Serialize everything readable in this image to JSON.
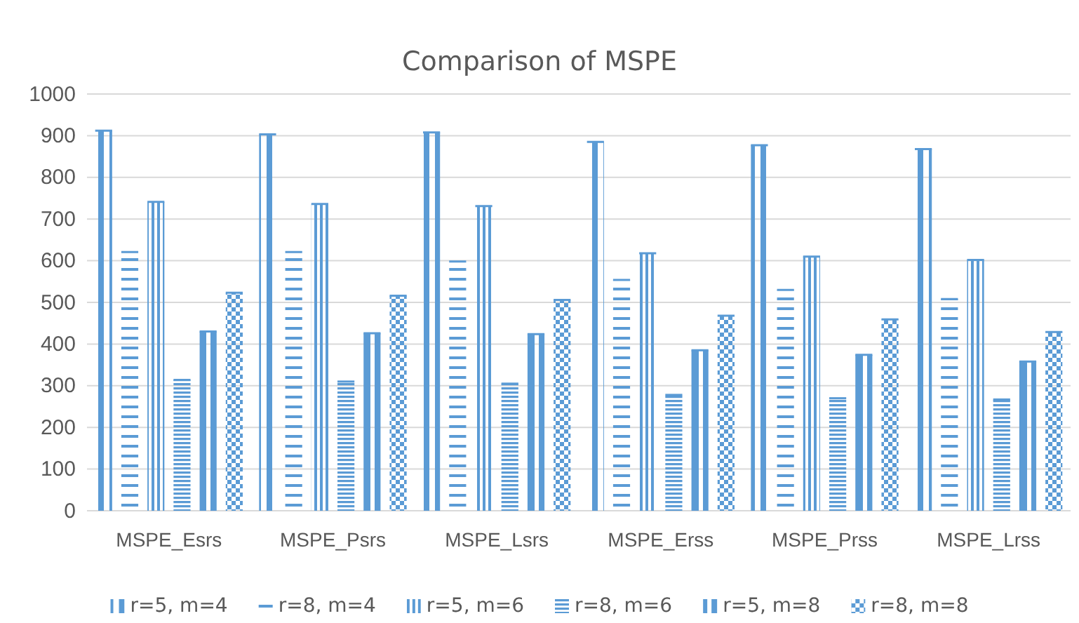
{
  "chart_data": {
    "type": "bar",
    "title": "Comparison of MSPE",
    "categories": [
      "MSPE_Esrs",
      "MSPE_Psrs",
      "MSPE_Lsrs",
      "MSPE_Erss",
      "MSPE_Prss",
      "MSPE_Lrss"
    ],
    "series": [
      {
        "name": "r=5, m=4",
        "color": "#5b9bd5",
        "values": [
          912,
          903,
          908,
          885,
          877,
          868
        ]
      },
      {
        "name": "r=8, m=4",
        "color": "#5b9bd5",
        "values": [
          621,
          621,
          598,
          554,
          530,
          508
        ]
      },
      {
        "name": "r=5, m=6",
        "color": "#5b9bd5",
        "values": [
          741,
          736,
          731,
          618,
          610,
          602
        ]
      },
      {
        "name": "r=8, m=6",
        "color": "#5b9bd5",
        "values": [
          314,
          310,
          305,
          278,
          270,
          267
        ]
      },
      {
        "name": "r=5, m=8",
        "color": "#5b9bd5",
        "values": [
          430,
          426,
          424,
          385,
          374,
          358
        ]
      },
      {
        "name": "r=8, m=8",
        "color": "#5b9bd5",
        "values": [
          523,
          516,
          506,
          468,
          459,
          429
        ]
      }
    ],
    "ylim": [
      0,
      1000
    ],
    "yticks": [
      0,
      100,
      200,
      300,
      400,
      500,
      600,
      700,
      800,
      900,
      1000
    ],
    "grid": "y",
    "legend": "bottom"
  }
}
